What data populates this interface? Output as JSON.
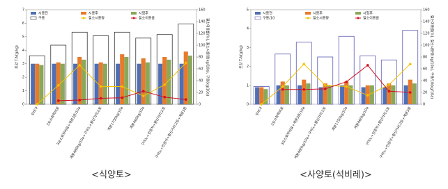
{
  "chart_data": [
    {
      "type": "bar",
      "caption": "<식양토>",
      "y_label": "토양 T-N(g/kg)",
      "y2_label": "질소이용률(%), 질소시용량(kg/10a), 구용(kg/10a)",
      "categories": [
        "무비구",
        "3요소화학비료",
        "3요소화학비료+계분3톤/10a",
        "계분480kg/10a+구아노+황산가리고토",
        "계분1750kg/10a",
        "계분460kg/10a",
        "구아노+인광석+황산가리고토",
        "구아노+인광석+황산가리고토+계분3톤"
      ],
      "ylim": [
        0,
        7
      ],
      "yticks": [
        0,
        1,
        2,
        3,
        4,
        5,
        6,
        7
      ],
      "y2lim": [
        0,
        160
      ],
      "y2ticks": [
        0,
        20,
        40,
        60,
        80,
        100,
        120,
        140,
        160
      ],
      "series": [
        {
          "name": "구용",
          "kind": "open",
          "axis": "y2",
          "color": "#333333",
          "values": [
            82,
            100,
            122,
            116,
            122,
            112,
            118,
            136
          ]
        },
        {
          "name": "시용전",
          "kind": "bar",
          "color": "#4f6fb5",
          "values": [
            3.0,
            3.0,
            3.0,
            3.0,
            3.0,
            3.0,
            3.0,
            3.0
          ]
        },
        {
          "name": "시용후",
          "kind": "bar",
          "color": "#e87a2c",
          "values": [
            3.0,
            3.1,
            3.5,
            3.1,
            3.7,
            3.4,
            3.5,
            3.9
          ]
        },
        {
          "name": "시험후",
          "kind": "bar",
          "color": "#8aa85a",
          "values": [
            2.9,
            3.0,
            3.3,
            3.0,
            3.5,
            3.1,
            3.3,
            3.6
          ]
        },
        {
          "name": "질소시용량",
          "kind": "line",
          "axis": "y2",
          "color": "#f2c200",
          "values": [
            0,
            32,
            66,
            30,
            30,
            14,
            33,
            70
          ]
        },
        {
          "name": "질소이용률",
          "kind": "line",
          "axis": "y2",
          "color": "#d01020",
          "values": [
            null,
            6,
            7,
            10,
            11,
            22,
            12,
            8
          ]
        }
      ]
    },
    {
      "type": "bar",
      "caption": "<사양토(석비레)>",
      "y_label": "토양 T-N(g/kg)",
      "y2_label": "질소이용률(%), 질소시용량(kg/10a), 구용/10(kg/10a)",
      "categories": [
        "무비구",
        "3요소화학비료",
        "3요소화학비료+계분3톤/10a",
        "계분480kg/10a+구아노+황산가리고토",
        "계분1750kg/10a",
        "계분460kg/10a",
        "구아노+인광석+황산가리고토",
        "구아노+인광석+황산가리고토+계분3톤"
      ],
      "ylim": [
        0,
        5
      ],
      "yticks": [
        0,
        1,
        2,
        3,
        4,
        5
      ],
      "y2lim": [
        0,
        160
      ],
      "y2ticks": [
        0,
        20,
        40,
        60,
        80,
        100,
        120,
        140,
        160
      ],
      "series": [
        {
          "name": "구용/10",
          "kind": "open",
          "axis": "y2",
          "color": "#5a5ab4",
          "values": [
            30,
            85,
            105,
            80,
            115,
            82,
            75,
            125
          ]
        },
        {
          "name": "시용전",
          "kind": "bar",
          "color": "#4f6fb5",
          "values": [
            0.9,
            1.0,
            1.0,
            0.9,
            1.0,
            0.9,
            0.9,
            1.0
          ]
        },
        {
          "name": "시용후",
          "kind": "bar",
          "color": "#e87a2c",
          "values": [
            0.9,
            1.2,
            1.3,
            1.1,
            1.2,
            1.0,
            1.1,
            1.3
          ]
        },
        {
          "name": "시험후",
          "kind": "bar",
          "color": "#8aa85a",
          "values": [
            0.8,
            1.0,
            1.1,
            1.0,
            1.0,
            1.0,
            1.0,
            1.1
          ]
        },
        {
          "name": "질소시용량",
          "kind": "line",
          "axis": "y2",
          "color": "#f2c200",
          "values": [
            0,
            30,
            68,
            32,
            30,
            15,
            33,
            68
          ]
        },
        {
          "name": "질소이용률",
          "kind": "line",
          "axis": "y2",
          "color": "#d01020",
          "values": [
            null,
            25,
            25,
            26,
            38,
            66,
            22,
            20
          ]
        }
      ]
    }
  ]
}
